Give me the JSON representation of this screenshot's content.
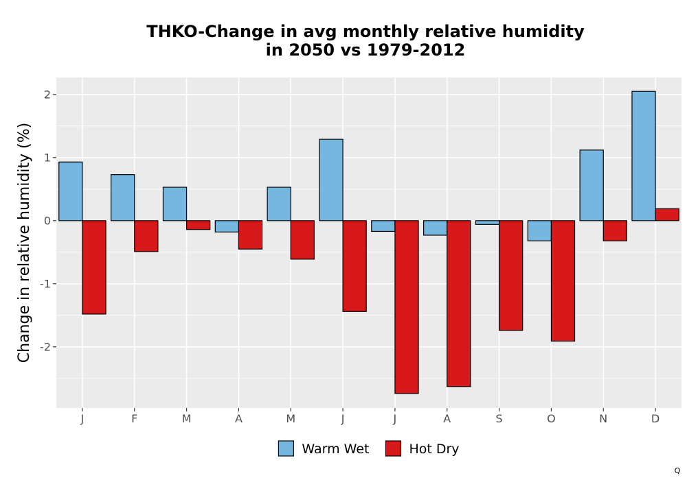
{
  "chart_data": {
    "type": "bar",
    "title_line1": "THKO-Change in avg monthly relative humidity",
    "title_line2": "in 2050 vs 1979-2012",
    "xlabel": "",
    "ylabel": "Change in relative humidity (%)",
    "categories": [
      "J",
      "F",
      "M",
      "A",
      "M",
      "J",
      "J",
      "A",
      "S",
      "O",
      "N",
      "D"
    ],
    "series": [
      {
        "name": "Warm Wet",
        "color": "#76b7e0",
        "values": [
          0.93,
          0.73,
          0.53,
          -0.18,
          0.53,
          1.29,
          -0.17,
          -0.23,
          -0.06,
          -0.32,
          1.12,
          2.05
        ]
      },
      {
        "name": "Hot Dry",
        "color": "#d7191c",
        "values": [
          -1.48,
          -0.49,
          -0.14,
          -0.45,
          -0.61,
          -1.44,
          -2.74,
          -2.63,
          -1.74,
          -1.91,
          -0.32,
          0.19
        ]
      }
    ],
    "ylim": [
      -2.97,
      2.27
    ],
    "yticks": [
      -2,
      -1,
      0,
      1,
      2
    ],
    "ytick_labels": [
      "-2",
      "-1",
      "0",
      "1",
      "2"
    ],
    "grid": true,
    "legend_position": "bottom",
    "panel_background": "#ebebeb",
    "corner_mark": "Q"
  }
}
